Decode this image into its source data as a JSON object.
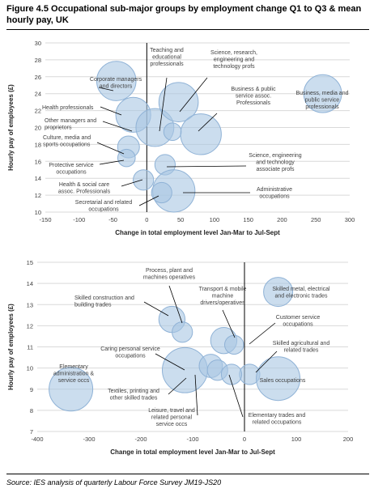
{
  "title": "Figure 4.5 Occupational sub-major groups by employment change Q1 to Q3 & mean hourly pay, UK",
  "source": "Source: IES analysis of quarterly Labour Force Survey JM19-JS20",
  "colors": {
    "bubble_fill": "#a9c6e2",
    "bubble_stroke": "#8fb2d6",
    "grid": "#d9d9d9",
    "axis": "#000000",
    "text": "#404040"
  },
  "chart_data": [
    {
      "type": "scatter",
      "encoding": "bubble",
      "title": "",
      "xlabel": "Change in total employment level Jan-Mar to Jul-Sept",
      "ylabel": "Hourly pay of employees (£)",
      "xlim": [
        -150,
        300
      ],
      "ylim": [
        10,
        30
      ],
      "xticks": [
        -150,
        -100,
        -50,
        0,
        50,
        100,
        150,
        200,
        250,
        300
      ],
      "yticks": [
        10,
        12,
        14,
        16,
        18,
        20,
        22,
        24,
        26,
        28,
        30
      ],
      "grid": "horizontal",
      "points": [
        {
          "label": "Corporate managers and directors",
          "x": -45,
          "y": 25.5,
          "size": 1.35
        },
        {
          "label": "Health professionals",
          "x": -20,
          "y": 21.5,
          "size": 1.2
        },
        {
          "label": "Other managers and proprietors",
          "x": 12,
          "y": 20.0,
          "size": 1.3
        },
        {
          "label": "Culture, media and sports occupations",
          "x": -27,
          "y": 17.7,
          "size": 0.75
        },
        {
          "label": "Protective service occupations",
          "x": -30,
          "y": 16.4,
          "size": 0.6
        },
        {
          "label": "Teaching and educational professionals",
          "x": 47,
          "y": 23.0,
          "size": 1.35
        },
        {
          "label": "Science, research, engineering and technology profs",
          "x": 80,
          "y": 19.2,
          "size": 1.4
        },
        {
          "label": "Business & public service assoc. Professionals",
          "x": 38,
          "y": 19.5,
          "size": 0.6
        },
        {
          "label": "Business, media and public service professionals",
          "x": 260,
          "y": 24.0,
          "size": 1.3
        },
        {
          "label": "Science, engineering and technology associate profs",
          "x": 27,
          "y": 15.6,
          "size": 0.7
        },
        {
          "label": "Health & social care assoc. Professionals",
          "x": -5,
          "y": 13.8,
          "size": 0.7
        },
        {
          "label": "Administrative occupations",
          "x": 40,
          "y": 12.5,
          "size": 1.45
        },
        {
          "label": "Secretarial and related occupations",
          "x": 22,
          "y": 12.3,
          "size": 0.7
        }
      ]
    },
    {
      "type": "scatter",
      "encoding": "bubble",
      "title": "",
      "xlabel": "Change in total employment level Jan-Mar to Jul-Sept",
      "ylabel": "Hourly pay of employees (£)",
      "xlim": [
        -400,
        200
      ],
      "ylim": [
        7,
        15
      ],
      "xticks": [
        -400,
        -300,
        -200,
        -100,
        0,
        100,
        200
      ],
      "yticks": [
        7,
        8,
        9,
        10,
        11,
        12,
        13,
        14,
        15
      ],
      "grid": "horizontal",
      "points": [
        {
          "label": "Skilled construction and building trades",
          "x": -140,
          "y": 12.3,
          "size": 0.9
        },
        {
          "label": "Process, plant and machines operatives",
          "x": -120,
          "y": 11.7,
          "size": 0.7
        },
        {
          "label": "Transport & mobile machine drivers/operatives",
          "x": -40,
          "y": 11.3,
          "size": 0.9
        },
        {
          "label": "Customer service occupations",
          "x": -20,
          "y": 11.1,
          "size": 0.65
        },
        {
          "label": "Skilled metal, electrical and electronic trades",
          "x": 65,
          "y": 13.6,
          "size": 1.0
        },
        {
          "label": "Caring personal service occupations",
          "x": -115,
          "y": 9.9,
          "size": 1.55
        },
        {
          "label": "Skilled agricultural and related trades",
          "x": 10,
          "y": 9.7,
          "size": 0.7
        },
        {
          "label": "Textiles, printing and other skilled trades",
          "x": -65,
          "y": 10.1,
          "size": 0.8
        },
        {
          "label": "Leisure, travel and related personal service occs",
          "x": -52,
          "y": 9.9,
          "size": 0.7
        },
        {
          "label": "Elementary trades and related occupations",
          "x": -25,
          "y": 9.7,
          "size": 0.7
        },
        {
          "label": "Sales occupations",
          "x": 65,
          "y": 9.5,
          "size": 1.5
        },
        {
          "label": "Elementary administration & service occs",
          "x": -335,
          "y": 9.0,
          "size": 1.5
        }
      ]
    }
  ]
}
